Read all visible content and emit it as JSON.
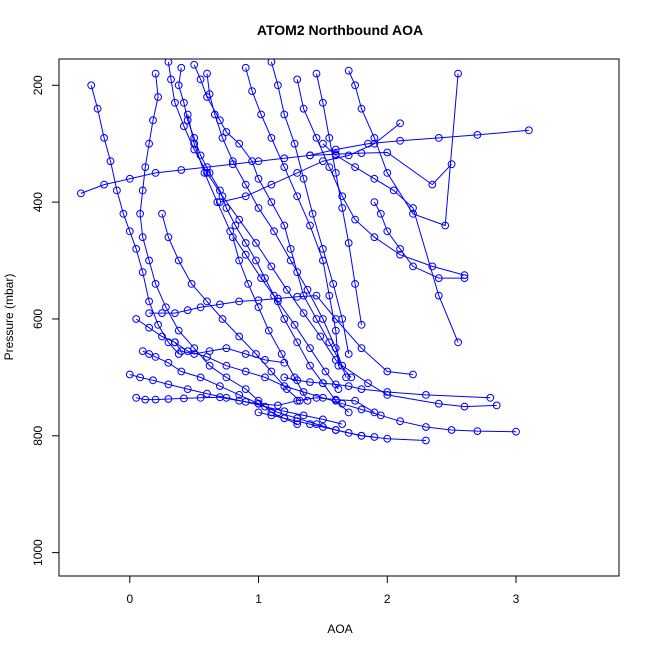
{
  "chart_data": {
    "type": "line",
    "title": "ATOM2 Northbound AOA",
    "xlabel": "AOA",
    "ylabel": "Pressure (mbar)",
    "xlim": [
      -0.55,
      3.8
    ],
    "ylim": [
      1040,
      155
    ],
    "y_reversed": true,
    "grid": false,
    "legend": "none",
    "color": "#0000ff",
    "marker": "open-circle",
    "x_ticks": [
      0,
      1,
      2,
      3
    ],
    "x_tick_labels": [
      "0",
      "1",
      "2",
      "3"
    ],
    "y_ticks": [
      200,
      400,
      600,
      800,
      1000
    ],
    "y_tick_labels": [
      "200",
      "400",
      "600",
      "800",
      "1000"
    ],
    "series": [
      {
        "x": [
          0.5,
          0.55,
          0.6,
          0.7,
          0.75,
          0.85,
          0.95,
          1.0,
          1.1,
          1.2,
          1.25,
          1.3,
          1.35,
          1.45,
          1.55,
          1.65,
          1.85,
          2.0,
          2.4,
          2.6,
          2.85
        ],
        "y": [
          165,
          190,
          220,
          260,
          280,
          300,
          330,
          360,
          400,
          440,
          480,
          520,
          560,
          600,
          640,
          680,
          710,
          730,
          745,
          750,
          748
        ]
      },
      {
        "x": [
          0.4,
          0.38,
          0.42,
          0.45,
          0.5,
          0.55,
          0.62,
          0.7,
          0.75,
          0.82,
          0.9,
          0.98,
          1.05,
          1.12,
          1.2,
          1.3,
          1.4,
          1.5,
          1.6,
          1.7
        ],
        "y": [
          170,
          200,
          230,
          260,
          290,
          320,
          350,
          380,
          410,
          440,
          470,
          500,
          530,
          560,
          600,
          640,
          680,
          710,
          740,
          760
        ]
      },
      {
        "x": [
          0.2,
          0.22,
          0.18,
          0.15,
          0.12,
          0.1,
          0.08,
          0.1,
          0.15,
          0.2,
          0.28,
          0.38,
          0.5,
          0.62,
          0.75,
          0.9,
          1.0,
          1.1,
          1.2,
          1.3
        ],
        "y": [
          180,
          220,
          260,
          300,
          340,
          380,
          420,
          460,
          500,
          540,
          580,
          620,
          650,
          680,
          700,
          720,
          740,
          760,
          770,
          780
        ]
      },
      {
        "x": [
          -0.3,
          -0.25,
          -0.2,
          -0.15,
          -0.1,
          -0.05,
          0.0,
          0.05,
          0.1,
          0.15,
          0.22,
          0.3,
          0.38
        ],
        "y": [
          200,
          240,
          290,
          330,
          380,
          420,
          450,
          480,
          520,
          570,
          610,
          640,
          660
        ]
      },
      {
        "x": [
          0.05,
          0.15,
          0.25,
          0.35,
          0.45,
          0.6,
          0.75,
          0.9,
          1.05,
          1.2,
          1.35,
          1.5,
          1.65,
          1.8,
          1.95,
          2.1,
          2.3,
          2.5,
          2.7,
          3.0
        ],
        "y": [
          600,
          615,
          630,
          640,
          655,
          665,
          680,
          690,
          700,
          715,
          725,
          735,
          745,
          755,
          765,
          775,
          785,
          790,
          792,
          793
        ]
      },
      {
        "x": [
          0.1,
          0.15,
          0.2,
          0.3,
          0.4,
          0.55,
          0.7,
          0.85,
          1.0,
          1.15,
          1.3,
          1.45,
          1.6,
          1.8,
          2.0,
          2.3
        ],
        "y": [
          655,
          660,
          665,
          675,
          690,
          700,
          715,
          730,
          745,
          760,
          770,
          780,
          790,
          800,
          805,
          808
        ]
      },
      {
        "x": [
          0.3,
          0.32,
          0.35,
          0.42,
          0.5,
          0.6,
          0.72,
          0.85,
          0.98,
          1.1,
          1.22,
          1.35,
          1.48,
          1.6,
          1.72
        ],
        "y": [
          160,
          190,
          230,
          270,
          310,
          350,
          390,
          430,
          470,
          510,
          550,
          590,
          630,
          670,
          700
        ]
      },
      {
        "x": [
          0.6,
          0.62,
          0.66,
          0.72,
          0.8,
          0.9,
          1.0,
          1.12,
          1.25,
          1.38,
          1.5,
          1.6,
          1.68
        ],
        "y": [
          180,
          215,
          250,
          290,
          330,
          370,
          410,
          450,
          500,
          550,
          600,
          650,
          700
        ]
      },
      {
        "x": [
          0.9,
          0.95,
          1.02,
          1.1,
          1.2,
          1.3,
          1.4,
          1.5,
          1.55,
          1.6,
          1.62
        ],
        "y": [
          170,
          210,
          250,
          290,
          340,
          390,
          440,
          500,
          560,
          620,
          680
        ]
      },
      {
        "x": [
          1.1,
          1.15,
          1.2,
          1.28,
          1.35,
          1.42,
          1.5,
          1.58,
          1.65,
          1.7
        ],
        "y": [
          160,
          200,
          250,
          300,
          360,
          420,
          480,
          540,
          600,
          660
        ]
      },
      {
        "x": [
          1.3,
          1.35,
          1.45,
          1.55,
          1.65,
          1.75,
          1.9,
          2.1,
          2.35,
          2.6
        ],
        "y": [
          190,
          240,
          290,
          340,
          390,
          430,
          460,
          490,
          510,
          525
        ]
      },
      {
        "x": [
          1.5,
          1.6,
          1.75,
          1.9,
          2.05,
          2.2,
          2.4,
          2.55
        ],
        "y": [
          300,
          320,
          340,
          360,
          380,
          410,
          560,
          640
        ]
      },
      {
        "x": [
          0.7,
          0.9,
          1.1,
          1.3,
          1.5,
          1.7,
          1.9,
          2.1
        ],
        "y": [
          400,
          390,
          370,
          350,
          330,
          320,
          300,
          265
        ]
      },
      {
        "x": [
          1.4,
          1.6,
          1.85,
          2.1,
          2.4,
          2.7,
          3.1
        ],
        "y": [
          320,
          310,
          300,
          295,
          290,
          285,
          277
        ]
      },
      {
        "x": [
          -0.38,
          -0.2,
          0.0,
          0.2,
          0.4,
          0.6,
          0.8,
          1.0,
          1.2,
          1.4,
          1.6,
          1.8,
          2.0,
          2.35,
          2.5
        ],
        "y": [
          385,
          370,
          360,
          350,
          345,
          340,
          335,
          330,
          325,
          320,
          318,
          316,
          315,
          370,
          335
        ]
      },
      {
        "x": [
          0.15,
          0.25,
          0.35,
          0.45,
          0.55,
          0.7,
          0.85,
          1.0,
          1.15,
          1.3,
          1.45,
          1.6,
          1.8,
          2.0,
          2.2
        ],
        "y": [
          590,
          590,
          590,
          585,
          580,
          575,
          570,
          568,
          565,
          562,
          560,
          600,
          650,
          690,
          695
        ]
      },
      {
        "x": [
          0.05,
          0.12,
          0.2,
          0.3,
          0.42,
          0.55,
          0.7,
          0.85,
          1.0,
          1.15,
          1.3,
          1.45,
          1.6,
          1.75,
          1.9
        ],
        "y": [
          735,
          738,
          738,
          737,
          736,
          735,
          734,
          740,
          745,
          748,
          740,
          735,
          738,
          740,
          760
        ]
      },
      {
        "x": [
          0.0,
          0.08,
          0.18,
          0.3,
          0.45,
          0.6,
          0.75,
          0.9,
          1.05,
          1.2,
          1.35,
          1.5,
          1.65
        ],
        "y": [
          695,
          700,
          705,
          712,
          720,
          728,
          735,
          742,
          750,
          758,
          765,
          772,
          780
        ]
      },
      {
        "x": [
          1.0,
          1.1,
          1.2,
          1.3,
          1.4,
          1.5,
          1.6,
          1.7,
          1.8,
          1.9
        ],
        "y": [
          760,
          765,
          770,
          775,
          780,
          785,
          790,
          795,
          800,
          802
        ]
      },
      {
        "x": [
          1.2,
          1.3,
          1.4,
          1.5,
          1.6,
          1.7,
          1.8,
          2.0,
          2.3,
          2.8
        ],
        "y": [
          700,
          705,
          708,
          710,
          712,
          715,
          720,
          725,
          730,
          735
        ]
      },
      {
        "x": [
          0.45,
          0.5,
          0.58,
          0.68,
          0.78,
          0.9,
          1.02,
          1.15,
          1.28,
          1.4,
          1.52,
          1.62
        ],
        "y": [
          250,
          300,
          350,
          400,
          450,
          490,
          530,
          570,
          610,
          650,
          690,
          720
        ]
      },
      {
        "x": [
          0.25,
          0.3,
          0.38,
          0.48,
          0.6,
          0.72,
          0.85,
          0.98,
          1.1,
          1.22,
          1.32
        ],
        "y": [
          420,
          460,
          500,
          540,
          570,
          600,
          630,
          660,
          690,
          720,
          740
        ]
      },
      {
        "x": [
          1.7,
          1.75,
          1.8,
          1.9,
          2.0,
          2.2,
          2.45,
          2.55
        ],
        "y": [
          175,
          200,
          240,
          290,
          350,
          420,
          440,
          180
        ]
      },
      {
        "x": [
          0.8,
          0.85,
          0.92,
          1.0,
          1.08,
          1.18,
          1.28,
          1.38
        ],
        "y": [
          460,
          500,
          540,
          580,
          620,
          660,
          700,
          740
        ]
      },
      {
        "x": [
          1.45,
          1.5,
          1.55,
          1.6,
          1.65,
          1.7,
          1.75,
          1.8
        ],
        "y": [
          180,
          230,
          290,
          350,
          410,
          470,
          540,
          610
        ]
      },
      {
        "x": [
          1.9,
          1.95,
          2.0,
          2.1,
          2.2,
          2.4,
          2.6
        ],
        "y": [
          400,
          420,
          450,
          480,
          510,
          530,
          530
        ]
      },
      {
        "x": [
          0.35,
          0.4,
          0.5,
          0.62,
          0.75,
          0.9,
          1.05,
          1.2
        ],
        "y": [
          640,
          655,
          660,
          655,
          650,
          660,
          670,
          675
        ]
      }
    ]
  }
}
